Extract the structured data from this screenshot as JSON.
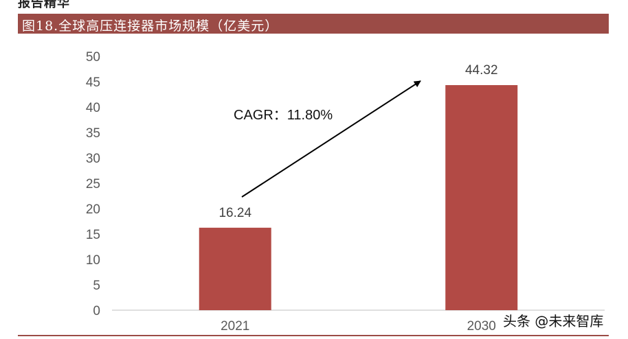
{
  "header_fragment": "报告精华",
  "chart_data": {
    "type": "bar",
    "title": "图18.全球高压连接器市场规模（亿美元）",
    "categories": [
      "2021",
      "2030"
    ],
    "values": [
      16.24,
      44.32
    ],
    "data_labels": [
      "16.24",
      "44.32"
    ],
    "ylim": [
      0,
      50
    ],
    "yticks": [
      0,
      5,
      10,
      15,
      20,
      25,
      30,
      35,
      40,
      45,
      50
    ],
    "xlabel": "",
    "ylabel": "",
    "grid": false,
    "legend": "none",
    "annotation": "CAGR：11.80%",
    "bar_color": "#b24a45",
    "axis_color": "#bfbfbf"
  },
  "watermark": "头条 @未来智库"
}
